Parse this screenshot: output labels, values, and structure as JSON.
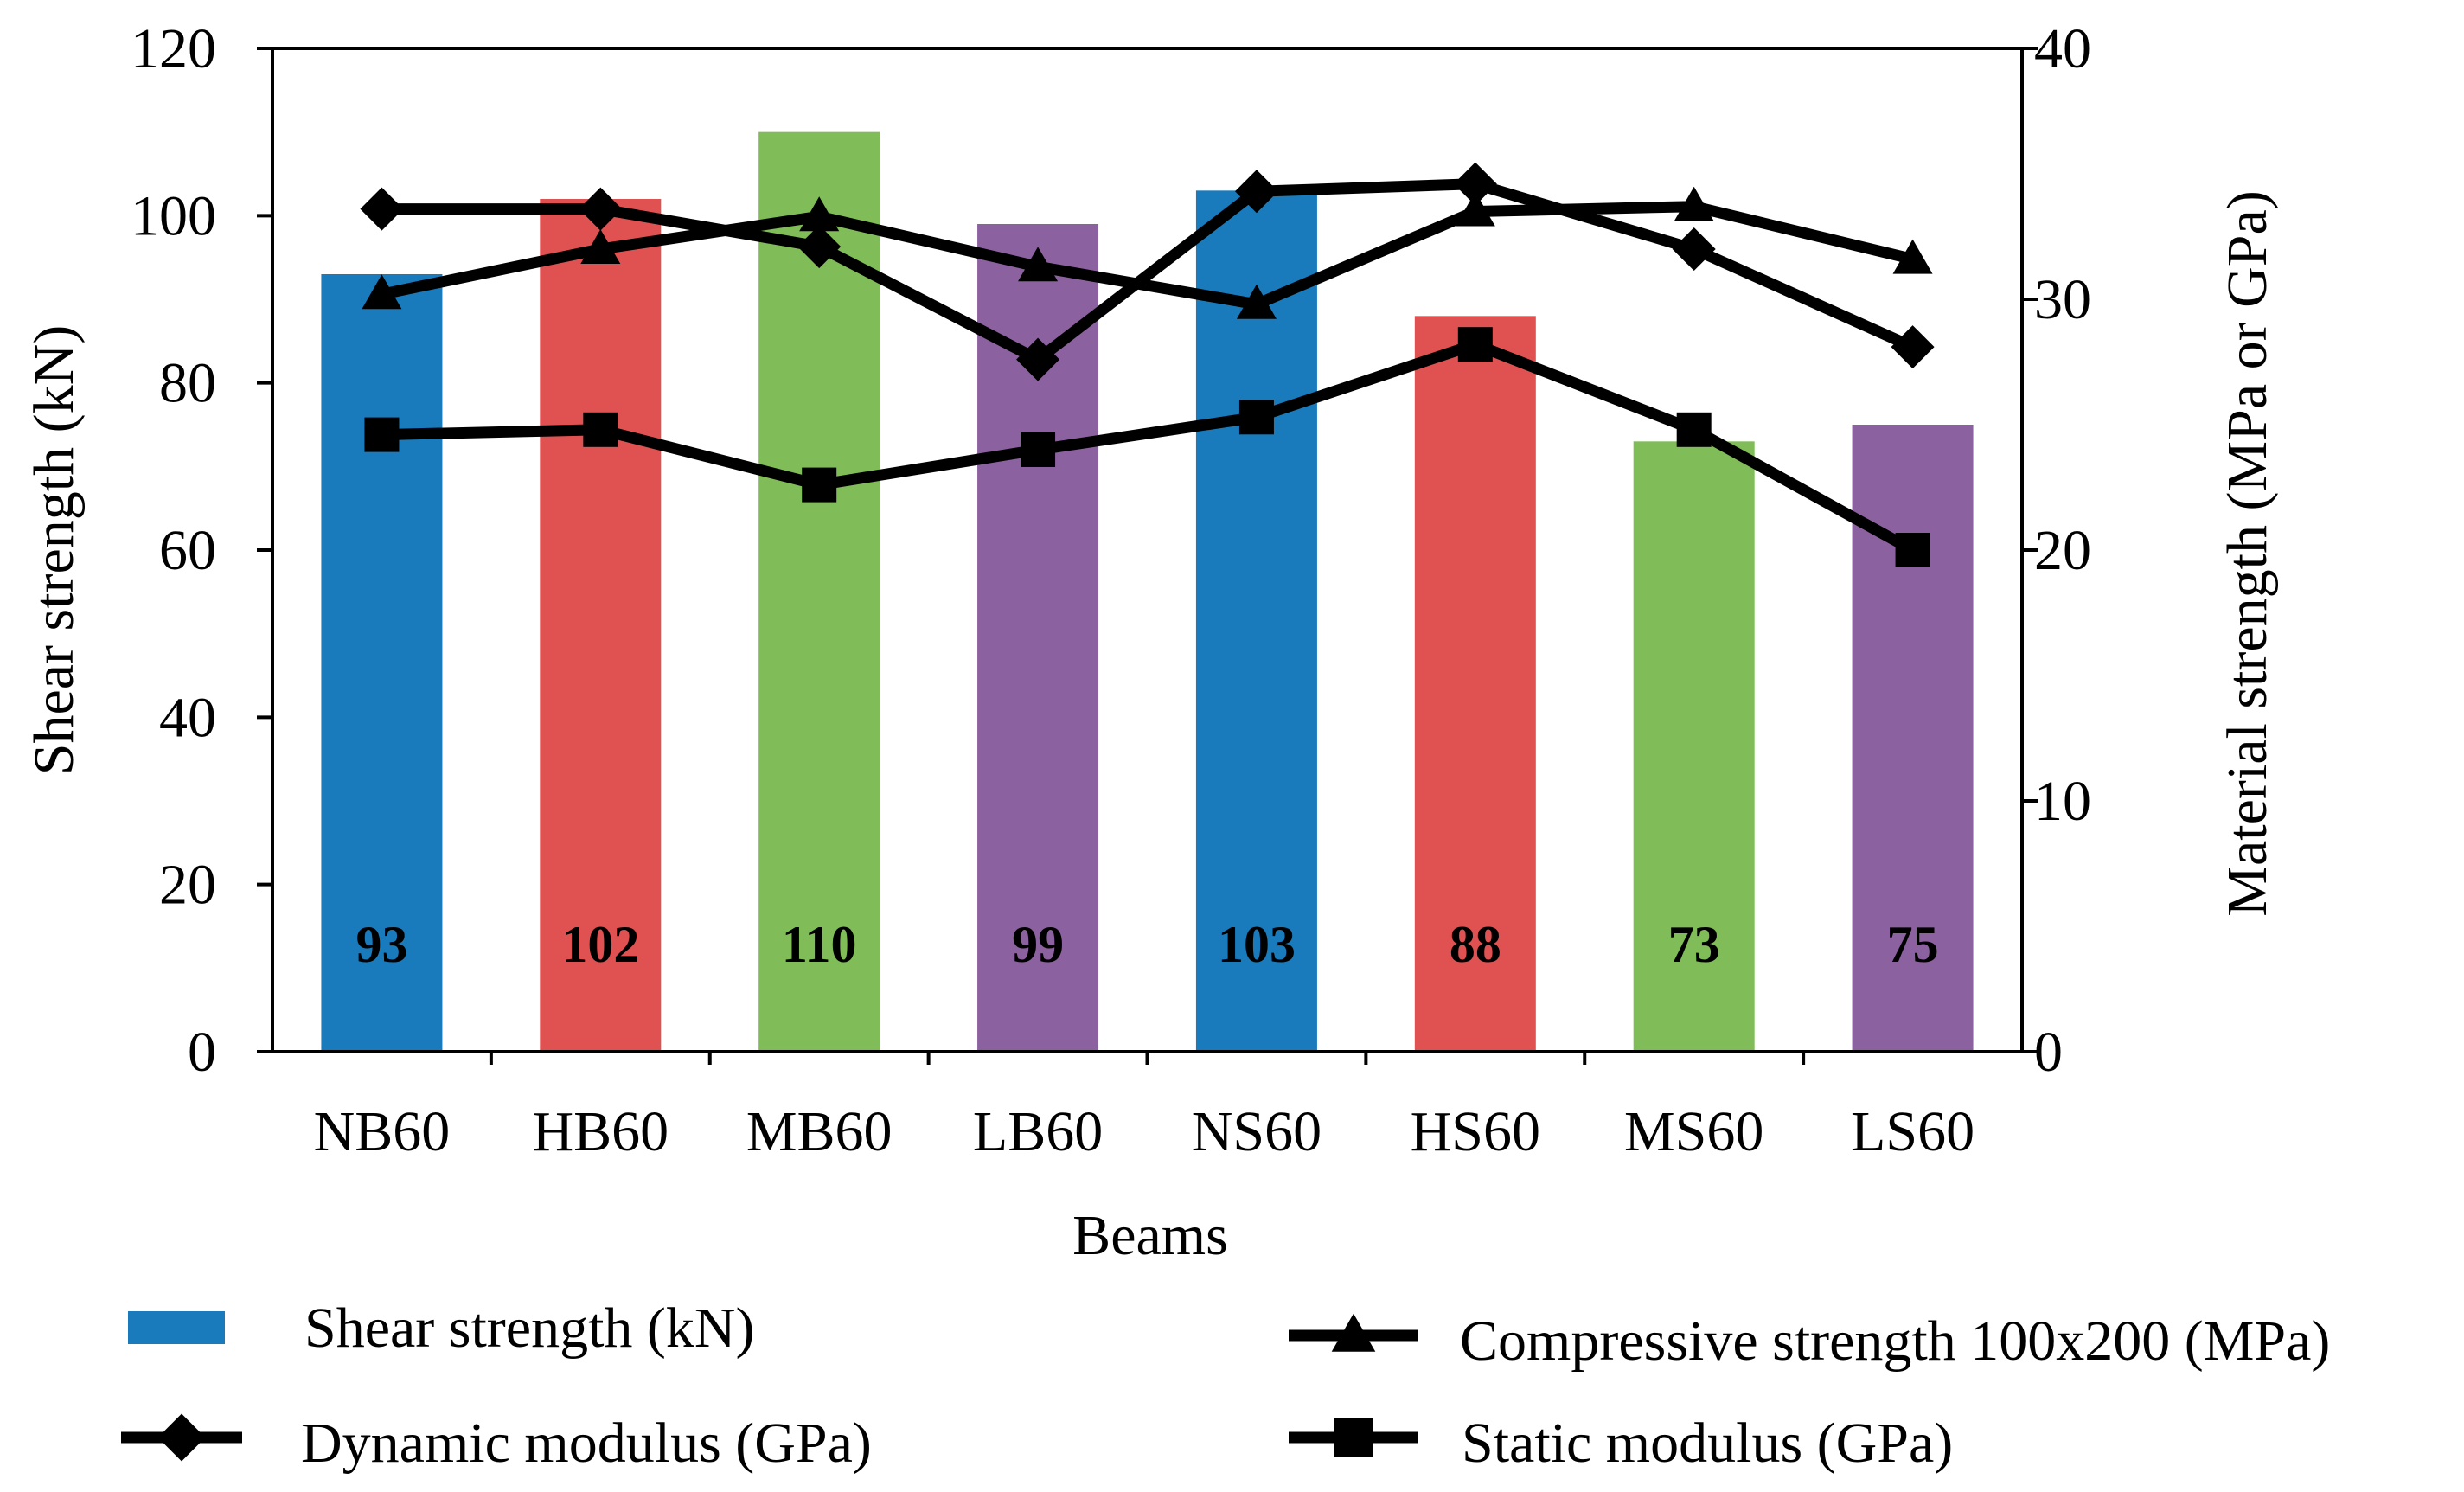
{
  "chart_data": {
    "type": "bar",
    "xlabel": "Beams",
    "ylabel": "Shear strength (kN)",
    "y2label": "Material strength (MPa or GPa)",
    "ylim": [
      0,
      120
    ],
    "y2lim": [
      0,
      40
    ],
    "yticks": [
      "0",
      "20",
      "40",
      "60",
      "80",
      "100",
      "120"
    ],
    "y2ticks": [
      "0",
      "10",
      "20",
      "30",
      "40"
    ],
    "categories": [
      "NB60",
      "HB60",
      "MB60",
      "LB60",
      "NS60",
      "HS60",
      "MS60",
      "LS60"
    ],
    "bar_colors": [
      "#1a7bbc",
      "#e05252",
      "#80bc57",
      "#8c619f",
      "#1a7bbc",
      "#e05252",
      "#80bc57",
      "#8c619f"
    ],
    "series": [
      {
        "name": "Shear strength (kN)",
        "type": "bar",
        "axis": "left",
        "values": [
          93,
          102,
          110,
          99,
          103,
          88,
          73,
          75
        ],
        "labels": [
          "93",
          "102",
          "110",
          "99",
          "103",
          "88",
          "73",
          "75"
        ]
      },
      {
        "name": "Compressive strength 100x200 (MPa)",
        "type": "line",
        "axis": "right",
        "marker": "triangle",
        "values": [
          30.2,
          32.0,
          33.3,
          31.3,
          29.8,
          33.5,
          33.7,
          31.6
        ]
      },
      {
        "name": "Dynamic modulus (GPa)",
        "type": "line",
        "axis": "right",
        "marker": "diamond",
        "values": [
          33.6,
          33.6,
          32.1,
          27.6,
          34.3,
          34.6,
          32.0,
          28.1
        ]
      },
      {
        "name": "Static modulus (GPa)",
        "type": "line",
        "axis": "right",
        "marker": "square",
        "values": [
          24.6,
          24.8,
          22.6,
          24.0,
          25.3,
          28.2,
          24.8,
          20.0
        ]
      }
    ],
    "legend_position": "bottom",
    "grid": false
  }
}
